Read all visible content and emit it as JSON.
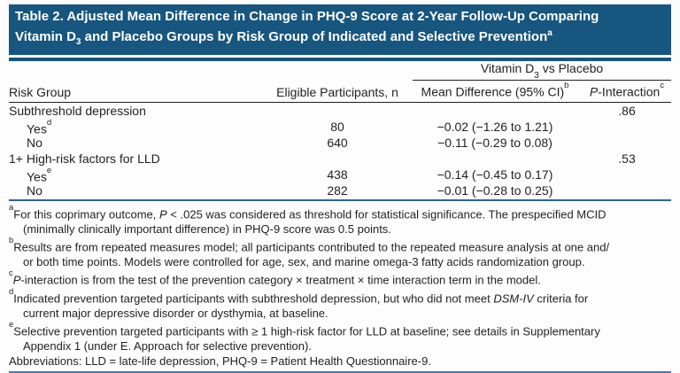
{
  "title": {
    "line1": "Table 2. Adjusted Mean Difference in Change in PHQ-9 Score at 2-Year Follow-Up Comparing",
    "line2_pre": "Vitamin D",
    "line2_sub": "3",
    "line2_post": " and Placebo Groups by Risk Group of Indicated and Selective Prevention",
    "line2_sup": "a"
  },
  "colors": {
    "header_bg": "#17567e",
    "rule_black": "#231f20",
    "rule_blue": "#2a659b",
    "bottom_rule": "#4279b2",
    "text": "#231f20"
  },
  "table": {
    "spanner": {
      "pre": "Vitamin D",
      "sub": "3",
      "post": " vs Placebo"
    },
    "headers": {
      "risk_group": "Risk Group",
      "eligible": "Eligible Participants, n",
      "mean_diff": "Mean Difference (95% CI)",
      "mean_diff_sup": "b",
      "p_italic": "P",
      "p_rest": "-Interaction",
      "p_sup": "c"
    },
    "rows": [
      {
        "label": "Subthreshold depression",
        "sup": "",
        "n": "",
        "mean_diff": "",
        "p": ".86"
      },
      {
        "label": "Yes",
        "sup": "d",
        "n": "80",
        "mean_diff": "−0.02 (−1.26 to 1.21)",
        "p": ""
      },
      {
        "label": "No",
        "sup": "",
        "n": "640",
        "mean_diff": "−0.11 (−0.29 to 0.08)",
        "p": ""
      },
      {
        "label": "1+ High-risk factors for LLD",
        "sup": "",
        "n": "",
        "mean_diff": "",
        "p": ".53"
      },
      {
        "label": "Yes",
        "sup": "e",
        "n": "438",
        "mean_diff": "−0.14 (−0.45 to 0.17)",
        "p": ""
      },
      {
        "label": "No",
        "sup": "",
        "n": "282",
        "mean_diff": "−0.01 (−0.28 to 0.25)",
        "p": ""
      }
    ]
  },
  "footnotes": {
    "a": {
      "marker": "a",
      "l1_pre": "For this coprimary outcome, ",
      "l1_italic": "P",
      "l1_post": " < .025 was considered as threshold for statistical significance. The prespecified MCID",
      "l2": "(minimally clinically important difference) in PHQ-9 score was 0.5 points."
    },
    "b": {
      "marker": "b",
      "l1": "Results are from repeated measures model; all participants contributed to the repeated measure analysis at one and/",
      "l2": "or both time points. Models were controlled for age, sex, and marine omega-3 fatty acids randomization group."
    },
    "c": {
      "marker": "c",
      "italic": "P",
      "text": "-interaction is from the test of the prevention category × treatment × time interaction term in the model."
    },
    "d": {
      "marker": "d",
      "l1_pre": "Indicated prevention targeted participants with subthreshold depression, but who did not meet ",
      "l1_italic": "DSM-IV",
      "l1_post": " criteria for",
      "l2": "current major depressive disorder or dysthymia, at baseline."
    },
    "e": {
      "marker": "e",
      "l1": "Selective prevention targeted participants with ≥ 1 high-risk factor for LLD at baseline; see details in Supplementary",
      "l2": "Appendix 1 (under E. Approach for selective prevention)."
    },
    "abbreviations": "Abbreviations: LLD = late-life depression, PHQ-9 = Patient Health Questionnaire-9."
  }
}
